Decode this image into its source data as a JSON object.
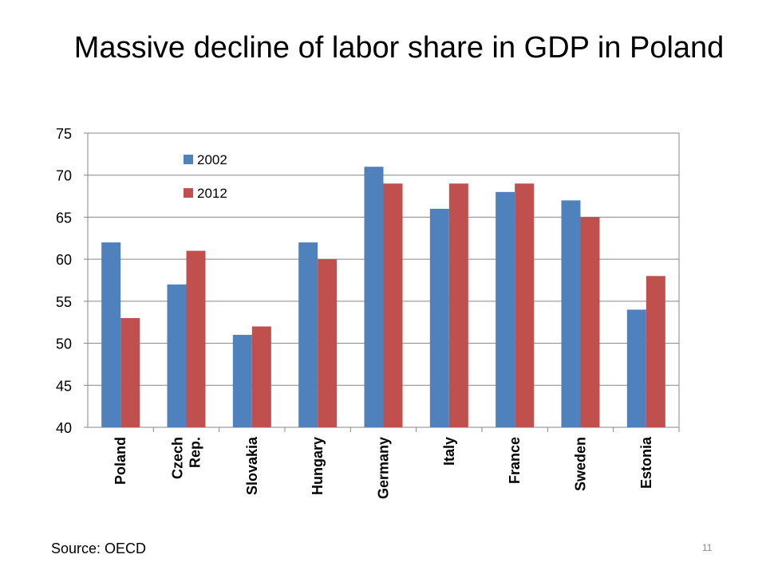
{
  "slide": {
    "title": "Massive decline of labor share  in GDP in Poland",
    "source": "Source: OECD",
    "page_number": "11"
  },
  "chart_data": {
    "type": "bar",
    "title": "",
    "xlabel": "",
    "ylabel": "",
    "categories": [
      "Poland",
      "Czech Rep.",
      "Slovakia",
      "Hungary",
      "Germany",
      "Italy",
      "France",
      "Sweden",
      "Estonia"
    ],
    "series": [
      {
        "name": "2002",
        "color": "#4f81bd",
        "values": [
          62,
          57,
          51,
          62,
          71,
          66,
          68,
          67,
          54
        ]
      },
      {
        "name": "2012",
        "color": "#c0504d",
        "values": [
          53,
          61,
          52,
          60,
          69,
          69,
          69,
          65,
          58
        ]
      }
    ],
    "ylim": [
      40,
      75
    ],
    "yticks": [
      40,
      45,
      50,
      55,
      60,
      65,
      70,
      75
    ],
    "grid": true,
    "legend_position": "top-left"
  }
}
